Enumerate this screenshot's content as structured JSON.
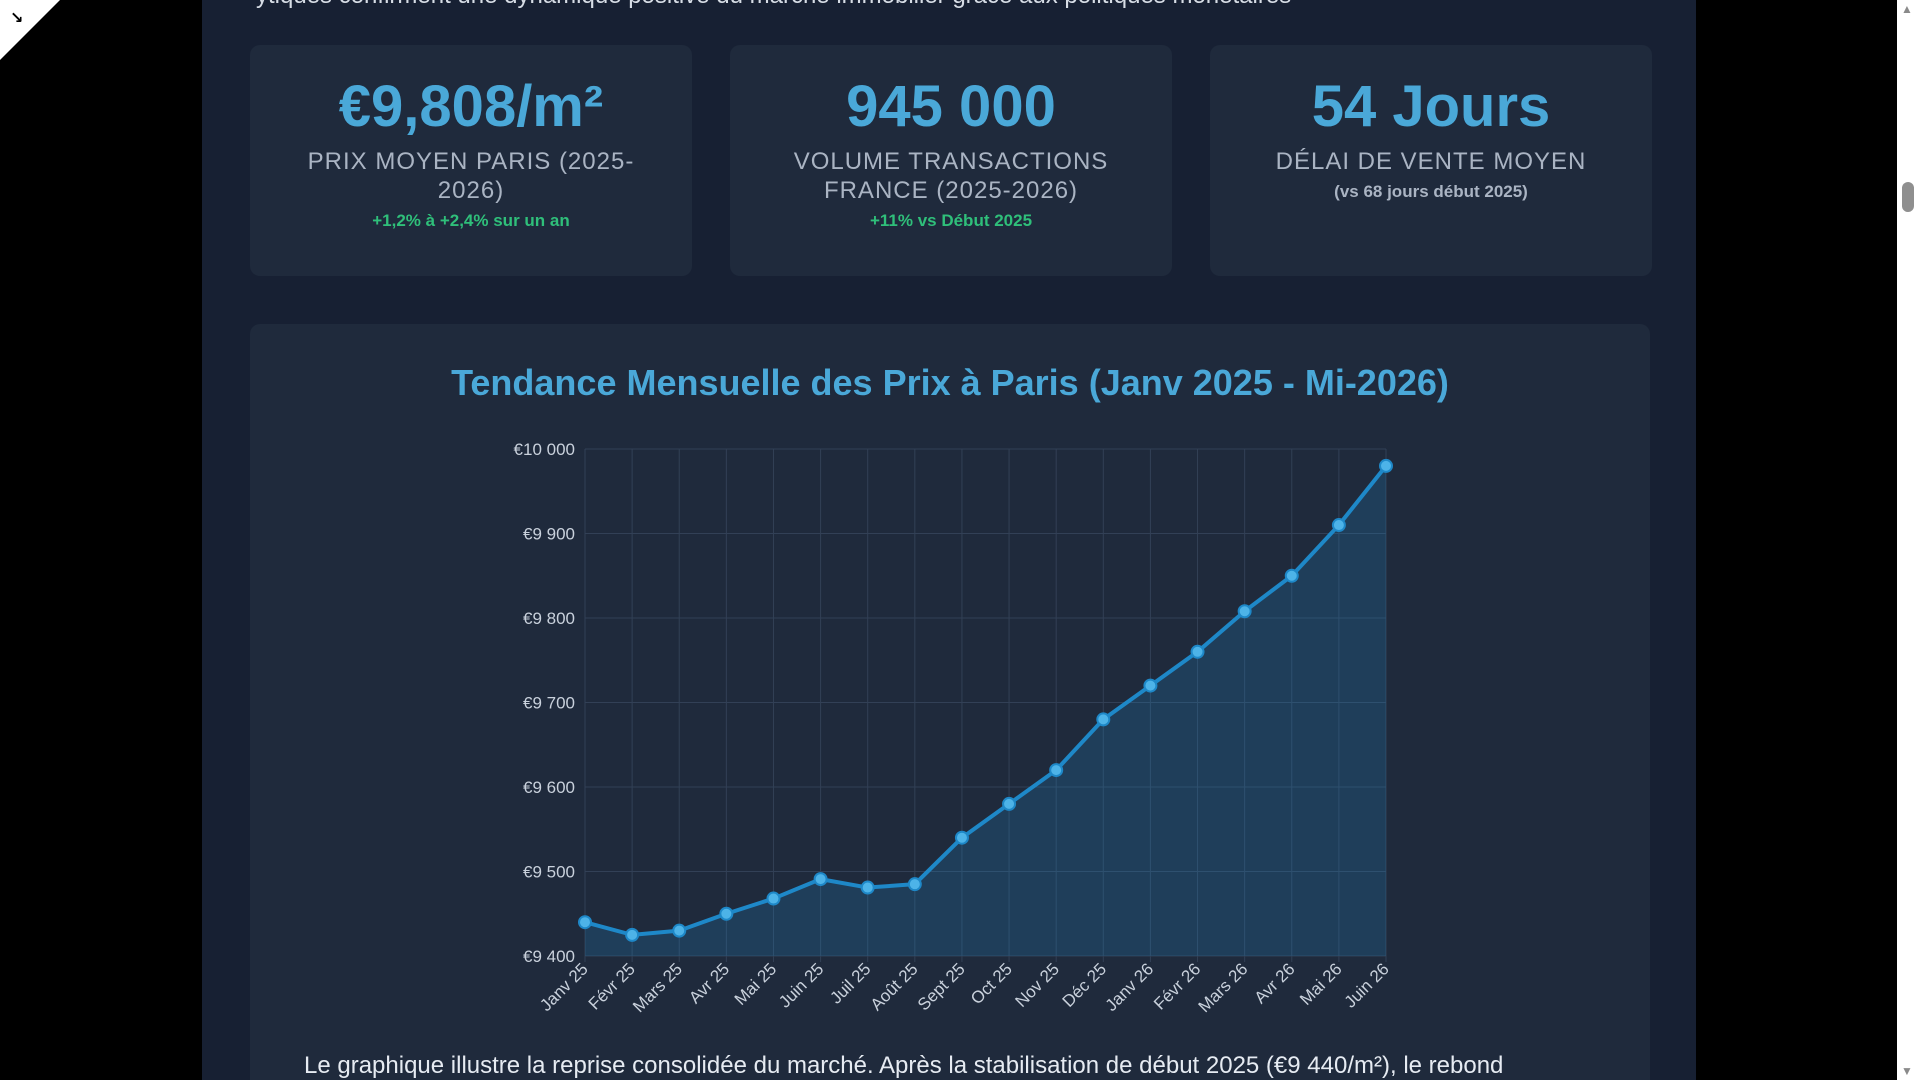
{
  "intro_cut": "ytiques confirment une dynamique positive du marché immobilier grâce aux politiques monétaires",
  "cards": [
    {
      "value": "€9,808/m²",
      "label": "PRIX MOYEN PARIS (2025-2026)",
      "note": "+1,2% à +2,4% sur un an"
    },
    {
      "value": "945 000",
      "label": "VOLUME TRANSACTIONS FRANCE (2025-2026)",
      "note": "+11% vs Début 2025"
    },
    {
      "value": "54 Jours",
      "label": "DÉLAI DE VENTE MOYEN",
      "note": "(vs 68 jours début 2025)"
    }
  ],
  "colors": {
    "accent": "#4aa8d8",
    "positive": "#2fbf7a",
    "line": "#1e88c8",
    "point": "#4db3e8"
  },
  "chart_data": {
    "type": "area",
    "title": "Tendance Mensuelle des Prix à Paris (Janv 2025 - Mi-2026)",
    "xlabel": "",
    "ylabel": "",
    "categories": [
      "Janv 25",
      "Févr 25",
      "Mars 25",
      "Avr 25",
      "Mai 25",
      "Juin 25",
      "Juil 25",
      "Août 25",
      "Sept 25",
      "Oct 25",
      "Nov 25",
      "Déc 25",
      "Janv 26",
      "Févr 26",
      "Mars 26",
      "Avr 26",
      "Mai 26",
      "Juin 26"
    ],
    "values": [
      9440,
      9425,
      9430,
      9450,
      9468,
      9491,
      9481,
      9485,
      9540,
      9580,
      9620,
      9680,
      9720,
      9760,
      9808,
      9850,
      9910,
      9980
    ],
    "ylim": [
      9400,
      10000
    ],
    "yticks": [
      9400,
      9500,
      9600,
      9700,
      9800,
      9900,
      10000
    ],
    "ytick_labels": [
      "€9 400",
      "€9 500",
      "€9 600",
      "€9 700",
      "€9 800",
      "€9 900",
      "€10 000"
    ],
    "grid": true,
    "legend": "none"
  },
  "caption": "Le graphique illustre la reprise consolidée du marché. Après la stabilisation de début 2025 (€9 440/m²), le rebond"
}
